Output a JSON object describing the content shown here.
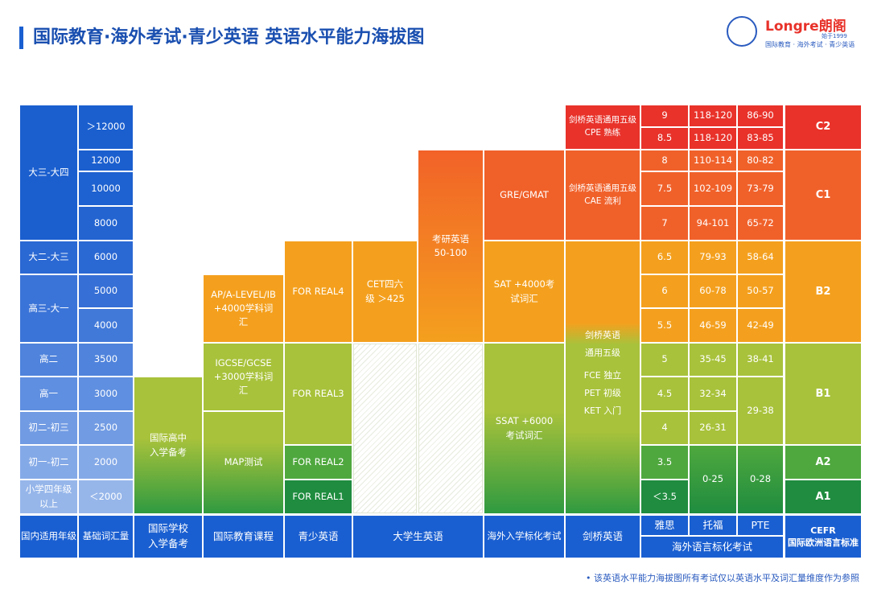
{
  "title": "国际教育·海外考试·青少英语 英语水平能力海拔图",
  "logo": {
    "brand": "Longre朗阁",
    "since": "始于1999",
    "tagline": "国际教育 · 海外考试 · 青少英语"
  },
  "grades": [
    "大三-大四",
    "大二-大三",
    "高三-大一",
    "高二",
    "高一",
    "初二-初三",
    "初一-初二",
    "小学四年级以上"
  ],
  "vocab": [
    "＞12000",
    "12000",
    "10000",
    "8000",
    "6000",
    "5000",
    "4000",
    "3500",
    "3000",
    "2500",
    "2000",
    "＜2000"
  ],
  "intl_school": "国际高中入学备考",
  "intl_courses": [
    "AP/A-LEVEL/IB +4000学科词汇",
    "IGCSE/GCSE +3000学科词汇",
    "MAP测试"
  ],
  "youth": [
    "FOR REAL4",
    "FOR REAL3",
    "FOR REAL2",
    "FOR REAL1"
  ],
  "college": {
    "cet": "CET四六级 ＞425",
    "kaoyan": "考研英语 50-100"
  },
  "overseas": [
    "GRE/GMAT",
    "SAT +4000考试词汇",
    "SSAT +6000考试词汇"
  ],
  "cambridge": {
    "cpe": "剑桥英语通用五级 CPE 熟练",
    "cae": "剑桥英语通用五级 CAE 流利",
    "l1": "剑桥英语",
    "l2": "通用五级",
    "fce": "FCE  独立",
    "pet": "PET 初级",
    "ket": "KET 入门"
  },
  "ielts": [
    "9",
    "8.5",
    "8",
    "7.5",
    "7",
    "6.5",
    "6",
    "5.5",
    "5",
    "4.5",
    "4",
    "3.5",
    "＜3.5"
  ],
  "toefl": [
    "118-120",
    "118-120",
    "110-114",
    "102-109",
    "94-101",
    "79-93",
    "60-78",
    "46-59",
    "35-45",
    "32-34",
    "26-31",
    "0-25"
  ],
  "pte": [
    "86-90",
    "83-85",
    "80-82",
    "73-79",
    "65-72",
    "58-64",
    "50-57",
    "42-49",
    "38-41",
    "29-38",
    "0-28"
  ],
  "cefr": [
    "C2",
    "C1",
    "B2",
    "B1",
    "A2",
    "A1"
  ],
  "footer": {
    "grade": "国内适用年级",
    "vocab": "基础词汇量",
    "intl_school": "国际学校入学备考",
    "intl_courses": "国际教育课程",
    "youth": "青少英语",
    "college": "大学生英语",
    "overseas": "海外入学标化考试",
    "cambridge": "剑桥英语",
    "ielts": "雅思",
    "toefl": "托福",
    "pte": "PTE",
    "lang": "海外语言标化考试",
    "cefr": "CEFR",
    "cefr_sub": "国际欧洲语言标准"
  },
  "note": "• 该英语水平能力海拔图所有考试仅以英语水平及词汇量维度作为参照",
  "colors": {
    "blue": "#1a5fd1",
    "c2": "#e8322a",
    "c1": "#f0612a",
    "b2": "#f4a01e",
    "b1": "#a8c23b",
    "a2": "#4fa83e",
    "a1": "#1f8c3f"
  }
}
